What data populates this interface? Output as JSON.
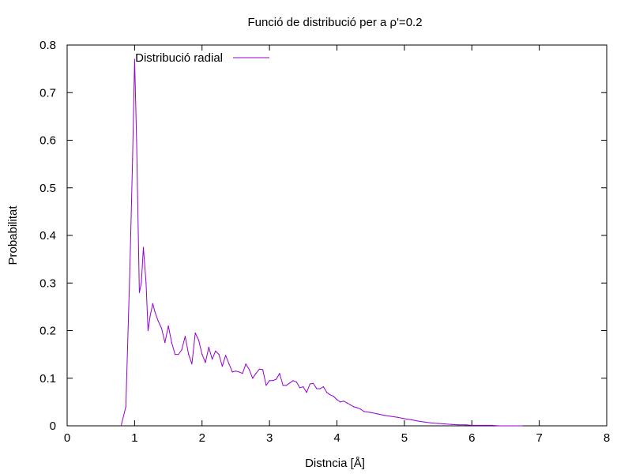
{
  "chart_data": {
    "type": "line",
    "title": "Funció de distribució per a ρ'=0.2",
    "xlabel": "Distncia [Å]",
    "ylabel": "Probabilitat",
    "xlim": [
      0,
      8
    ],
    "ylim": [
      0,
      0.8
    ],
    "xticks": [
      "0",
      "1",
      "2",
      "3",
      "4",
      "5",
      "6",
      "7",
      "8"
    ],
    "yticks": [
      "0",
      "0.1",
      "0.2",
      "0.3",
      "0.4",
      "0.5",
      "0.6",
      "0.7",
      "0.8"
    ],
    "grid": false,
    "legend_position": "top-left",
    "series": [
      {
        "name": "Distribució radial",
        "color": "#9400d3",
        "x": [
          0.8,
          0.87,
          0.93,
          0.97,
          1.0,
          1.03,
          1.07,
          1.1,
          1.13,
          1.17,
          1.2,
          1.23,
          1.27,
          1.3,
          1.35,
          1.4,
          1.45,
          1.5,
          1.55,
          1.6,
          1.65,
          1.7,
          1.75,
          1.8,
          1.85,
          1.9,
          1.95,
          2.0,
          2.05,
          2.1,
          2.15,
          2.2,
          2.25,
          2.3,
          2.35,
          2.4,
          2.45,
          2.5,
          2.55,
          2.6,
          2.65,
          2.7,
          2.75,
          2.8,
          2.85,
          2.9,
          2.95,
          3.0,
          3.05,
          3.1,
          3.15,
          3.2,
          3.25,
          3.3,
          3.35,
          3.4,
          3.45,
          3.5,
          3.55,
          3.6,
          3.65,
          3.7,
          3.75,
          3.8,
          3.85,
          3.9,
          3.95,
          4.0,
          4.05,
          4.1,
          4.15,
          4.2,
          4.25,
          4.3,
          4.35,
          4.4,
          4.5,
          4.6,
          4.7,
          4.8,
          4.9,
          5.0,
          5.1,
          5.2,
          5.3,
          5.4,
          5.5,
          5.6,
          5.7,
          5.8,
          5.9,
          6.0,
          6.1,
          6.2,
          6.3,
          6.4,
          6.5,
          6.6,
          6.75
        ],
        "values": [
          0.0,
          0.04,
          0.33,
          0.56,
          0.77,
          0.6,
          0.28,
          0.3,
          0.375,
          0.3,
          0.2,
          0.23,
          0.257,
          0.24,
          0.22,
          0.205,
          0.175,
          0.21,
          0.175,
          0.15,
          0.15,
          0.16,
          0.188,
          0.15,
          0.13,
          0.195,
          0.18,
          0.15,
          0.133,
          0.165,
          0.14,
          0.157,
          0.15,
          0.125,
          0.148,
          0.13,
          0.113,
          0.115,
          0.113,
          0.11,
          0.13,
          0.118,
          0.1,
          0.11,
          0.119,
          0.118,
          0.085,
          0.095,
          0.095,
          0.098,
          0.11,
          0.085,
          0.085,
          0.09,
          0.095,
          0.092,
          0.08,
          0.082,
          0.07,
          0.088,
          0.089,
          0.078,
          0.078,
          0.082,
          0.07,
          0.065,
          0.062,
          0.055,
          0.05,
          0.052,
          0.048,
          0.044,
          0.04,
          0.038,
          0.035,
          0.03,
          0.028,
          0.025,
          0.022,
          0.02,
          0.018,
          0.015,
          0.013,
          0.01,
          0.008,
          0.006,
          0.005,
          0.004,
          0.003,
          0.002,
          0.002,
          0.001,
          0.001,
          0.001,
          0.001,
          0.0,
          0.0,
          0.0,
          0.0
        ]
      }
    ]
  }
}
